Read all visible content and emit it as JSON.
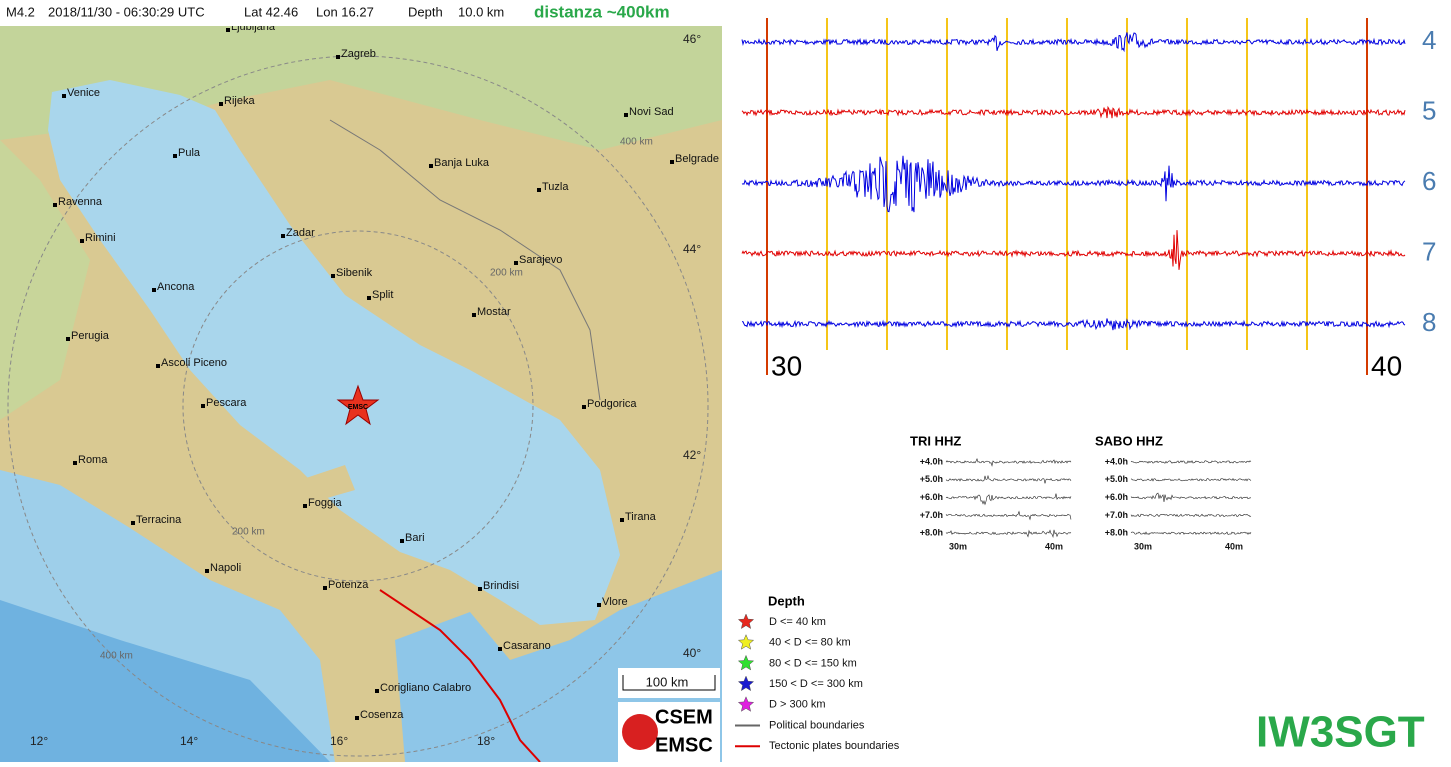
{
  "header": {
    "magnitude": "M4.2",
    "datetime": "2018/11/30 - 06:30:29 UTC",
    "lat": "Lat 42.46",
    "lon": "Lon 16.27",
    "depth_label": "Depth",
    "depth": "10.0 km",
    "distance": "distanza ~400km"
  },
  "map": {
    "cities": [
      "Ljubljana",
      "Zagreb",
      "Venice",
      "Rijeka",
      "Novi Sad",
      "Pula",
      "Belgrade",
      "Banja Luka",
      "Tuzla",
      "Ravenna",
      "Rimini",
      "Zadar",
      "Sarajevo",
      "Sibenik",
      "Split",
      "Ancona",
      "Mostar",
      "Perugia",
      "Ascoli Piceno",
      "Pescara",
      "Podgorica",
      "Roma",
      "Foggia",
      "Tirana",
      "Terracina",
      "Bari",
      "Napoli",
      "Potenza",
      "Brindisi",
      "Vlore",
      "Casarano",
      "Corigliano Calabro",
      "Cosenza"
    ],
    "ring_labels": [
      "400 km",
      "200 km",
      "200 km",
      "400 km"
    ],
    "latitudes": [
      "46°",
      "44°",
      "42°",
      "40°"
    ],
    "longitudes": [
      "12°",
      "14°",
      "16°",
      "18°"
    ],
    "epicenter_label": "EMSC",
    "scale": "100 km",
    "logo": [
      "CSEM",
      "EMSC"
    ]
  },
  "legend": {
    "title": "Depth",
    "entries": [
      "D <= 40 km",
      "40 < D <= 80 km",
      "80 < D <= 150 km",
      "150 < D <= 300 km",
      "D > 300 km",
      "Political boundaries",
      "Tectonic plates boundaries"
    ]
  },
  "seismogram": {
    "traces": [
      "4",
      "5",
      "6",
      "7",
      "8"
    ],
    "axis": [
      "30",
      "40"
    ]
  },
  "stations": [
    {
      "title": "TRI HHZ",
      "rows": [
        "+4.0h",
        "+5.0h",
        "+6.0h",
        "+7.0h",
        "+8.0h"
      ],
      "axis": [
        "30m",
        "40m"
      ]
    },
    {
      "title": "SABO HHZ",
      "rows": [
        "+4.0h",
        "+5.0h",
        "+6.0h",
        "+7.0h",
        "+8.0h"
      ],
      "axis": [
        "30m",
        "40m"
      ]
    }
  ],
  "signature": "IW3SGT"
}
